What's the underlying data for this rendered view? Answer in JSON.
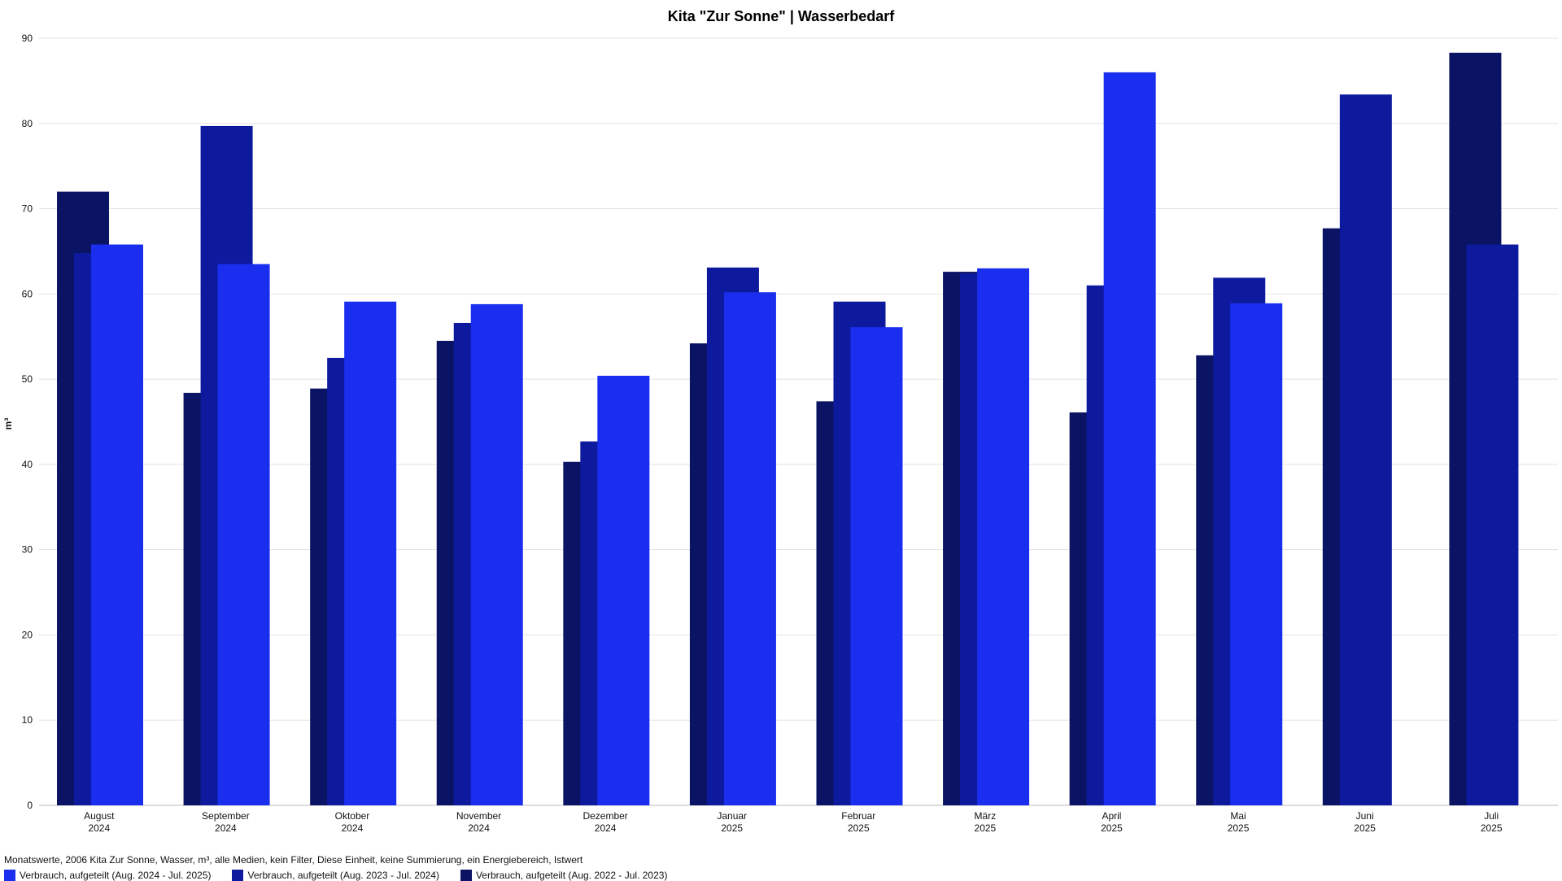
{
  "chart_data": {
    "type": "bar",
    "title": "Kita \"Zur Sonne\" | Wasserbedarf",
    "ylabel": "m³",
    "ylim": [
      0,
      90
    ],
    "yticks": [
      0,
      10,
      20,
      30,
      40,
      50,
      60,
      70,
      80,
      90
    ],
    "grid": true,
    "categories": [
      {
        "month": "August",
        "year": "2024"
      },
      {
        "month": "September",
        "year": "2024"
      },
      {
        "month": "Oktober",
        "year": "2024"
      },
      {
        "month": "November",
        "year": "2024"
      },
      {
        "month": "Dezember",
        "year": "2024"
      },
      {
        "month": "Januar",
        "year": "2025"
      },
      {
        "month": "Februar",
        "year": "2025"
      },
      {
        "month": "März",
        "year": "2025"
      },
      {
        "month": "April",
        "year": "2025"
      },
      {
        "month": "Mai",
        "year": "2025"
      },
      {
        "month": "Juni",
        "year": "2025"
      },
      {
        "month": "Juli",
        "year": "2025"
      }
    ],
    "series": [
      {
        "name": "Verbrauch, aufgeteilt (Aug. 2022 - Jul. 2023)",
        "color": "#0b1464",
        "values": [
          72.0,
          48.4,
          48.9,
          54.5,
          40.3,
          54.2,
          47.4,
          62.6,
          46.1,
          52.8,
          67.7,
          88.3
        ]
      },
      {
        "name": "Verbrauch, aufgeteilt (Aug. 2023 - Jul. 2024)",
        "color": "#0d1a9e",
        "values": [
          64.8,
          79.7,
          52.5,
          56.6,
          42.7,
          63.1,
          59.1,
          62.4,
          61.0,
          61.9,
          83.4,
          65.8
        ]
      },
      {
        "name": "Verbrauch, aufgeteilt (Aug. 2024 - Jul. 2025)",
        "color": "#1a2ef0",
        "values": [
          65.8,
          63.5,
          59.1,
          58.8,
          50.4,
          60.2,
          56.1,
          63.0,
          86.0,
          58.9,
          null,
          null
        ]
      }
    ],
    "legend_position": "bottom-left"
  },
  "footer": {
    "note": "Monatswerte, 2006 Kita Zur Sonne, Wasser, m³, alle Medien, kein Filter, Diese Einheit, keine Summierung, ein Energiebereich, Istwert"
  },
  "legend_order": [
    2,
    1,
    0
  ]
}
